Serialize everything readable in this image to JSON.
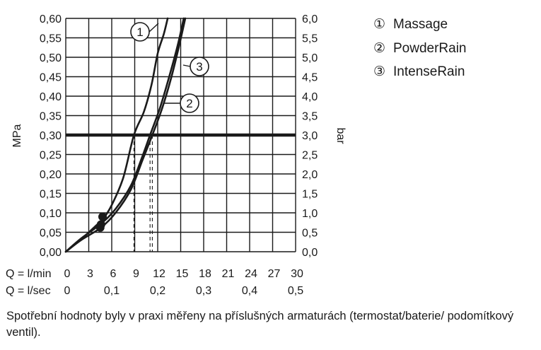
{
  "chart_data": {
    "type": "line",
    "y_left_label": "MPa",
    "y_right_label": "bar",
    "x_row1_label": "Q = l/min",
    "x_row2_label": "Q = l/sec",
    "x_row1_ticks": [
      "0",
      "3",
      "6",
      "9",
      "12",
      "15",
      "18",
      "21",
      "24",
      "27",
      "30"
    ],
    "x_row2_ticks": [
      "0",
      "0,1",
      "0,2",
      "0,3",
      "0,4",
      "0,5"
    ],
    "y_left_ticks": [
      "0,00",
      "0,05",
      "0,10",
      "0,15",
      "0,20",
      "0,25",
      "0,30",
      "0,35",
      "0,40",
      "0,45",
      "0,50",
      "0,55",
      "0,60"
    ],
    "y_right_ticks": [
      "0,0",
      "0,5",
      "1,0",
      "1,5",
      "2,0",
      "2,5",
      "3,0",
      "3,5",
      "4,0",
      "4,5",
      "5,0",
      "5,5",
      "6,0"
    ],
    "xlim": [
      0,
      30
    ],
    "ylim": [
      0,
      0.6
    ],
    "grid": true,
    "reference_line": {
      "y": 0.3
    },
    "series": [
      {
        "name": "Massage",
        "marker": "1",
        "drop_x": 8.9,
        "points": [
          [
            0,
            0
          ],
          [
            2,
            0.032
          ],
          [
            4,
            0.068
          ],
          [
            4.9,
            0.085
          ],
          [
            6,
            0.12
          ],
          [
            7.5,
            0.19
          ],
          [
            8.9,
            0.3
          ],
          [
            10.2,
            0.36
          ],
          [
            11.2,
            0.43
          ],
          [
            12,
            0.51
          ],
          [
            12.8,
            0.56
          ],
          [
            13.3,
            0.6
          ]
        ]
      },
      {
        "name": "PowderRain",
        "marker": "2",
        "drop_x": 11.3,
        "points": [
          [
            0,
            0
          ],
          [
            2,
            0.03
          ],
          [
            4.6,
            0.062
          ],
          [
            6.5,
            0.1
          ],
          [
            8.5,
            0.16
          ],
          [
            10,
            0.235
          ],
          [
            11.3,
            0.3
          ],
          [
            12.6,
            0.37
          ],
          [
            13.8,
            0.45
          ],
          [
            14.8,
            0.53
          ],
          [
            15.6,
            0.6
          ]
        ]
      },
      {
        "name": "IntenseRain",
        "marker": "3",
        "drop_x": 11.0,
        "points": [
          [
            0,
            0
          ],
          [
            2,
            0.034
          ],
          [
            4.6,
            0.072
          ],
          [
            6.5,
            0.11
          ],
          [
            8.5,
            0.17
          ],
          [
            10,
            0.245
          ],
          [
            11,
            0.3
          ],
          [
            12.3,
            0.37
          ],
          [
            13.5,
            0.45
          ],
          [
            14.6,
            0.53
          ],
          [
            15.4,
            0.6
          ]
        ]
      }
    ],
    "start_points": [
      [
        4.8,
        0.09
      ],
      [
        4.6,
        0.07
      ],
      [
        4.5,
        0.062
      ]
    ]
  },
  "legend": [
    {
      "symbol": "①",
      "label": "Massage"
    },
    {
      "symbol": "②",
      "label": "PowderRain"
    },
    {
      "symbol": "③",
      "label": "IntenseRain"
    }
  ],
  "caption": "Spotřební hodnoty byly v praxi měřeny na příslušných armaturách (termostat/baterie/ podomítkový ventil)."
}
